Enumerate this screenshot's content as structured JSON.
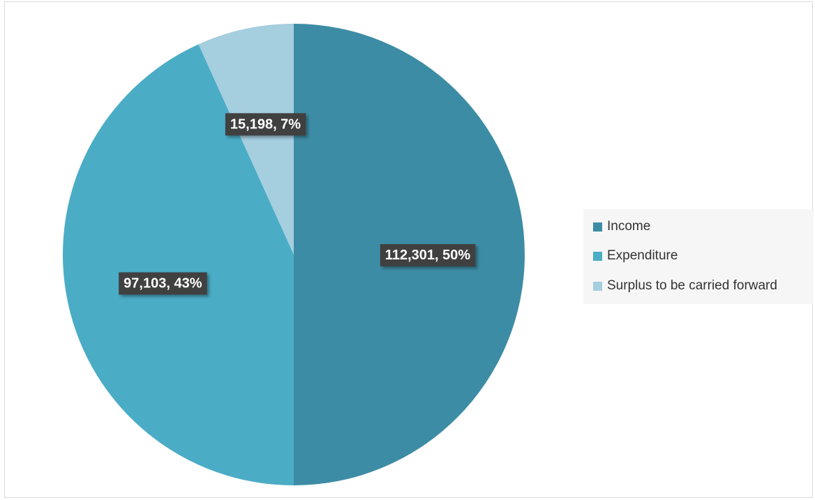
{
  "chart_data": {
    "type": "pie",
    "title": "",
    "slices": [
      {
        "label": "Income",
        "value": 112301,
        "data_label": "112,301, 50%",
        "color": "#3d8ca5"
      },
      {
        "label": "Expenditure",
        "value": 97103,
        "data_label": "97,103, 43%",
        "color": "#4bacc6"
      },
      {
        "label": "Surplus to be carried forward",
        "value": 15198,
        "data_label": "15,198, 7%",
        "color": "#a5cedf"
      }
    ],
    "legend_placement": "right",
    "data_label_style": {
      "background": "#404040",
      "text_color": "#ffffff"
    }
  }
}
